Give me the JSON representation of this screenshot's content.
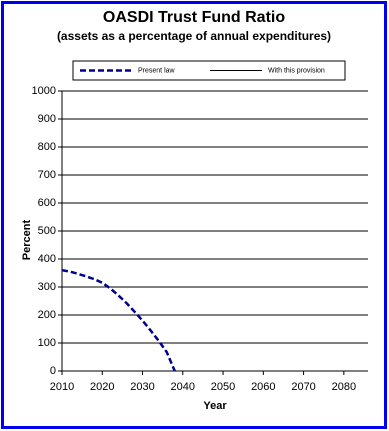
{
  "chart_data": {
    "type": "line",
    "title": "OASDI Trust Fund Ratio",
    "subtitle": "(assets as a percentage of annual expenditures)",
    "x_label": "Year",
    "y_label": "Percent",
    "x": [
      2010,
      2012,
      2014,
      2016,
      2018,
      2020,
      2022,
      2024,
      2026,
      2028,
      2030,
      2032,
      2034,
      2036,
      2038
    ],
    "series": [
      {
        "name": "Present law",
        "color": "#00008b",
        "dashed": true,
        "values": [
          360,
          355,
          347,
          338,
          328,
          315,
          295,
          270,
          243,
          212,
          180,
          145,
          108,
          68,
          0
        ]
      },
      {
        "name": "With this provision",
        "color": "#000000",
        "dashed": false,
        "values": [
          null,
          null,
          null,
          null,
          null,
          null,
          null,
          null,
          null,
          null,
          null,
          null,
          null,
          null,
          null
        ]
      }
    ],
    "xlim": [
      2010,
      2086
    ],
    "xticks": [
      2010,
      2020,
      2030,
      2040,
      2050,
      2060,
      2070,
      2080
    ],
    "ylim": [
      0,
      1000
    ],
    "yticks": [
      0,
      100,
      200,
      300,
      400,
      500,
      600,
      700,
      800,
      900,
      1000
    ],
    "grid": true,
    "legend": "top"
  }
}
